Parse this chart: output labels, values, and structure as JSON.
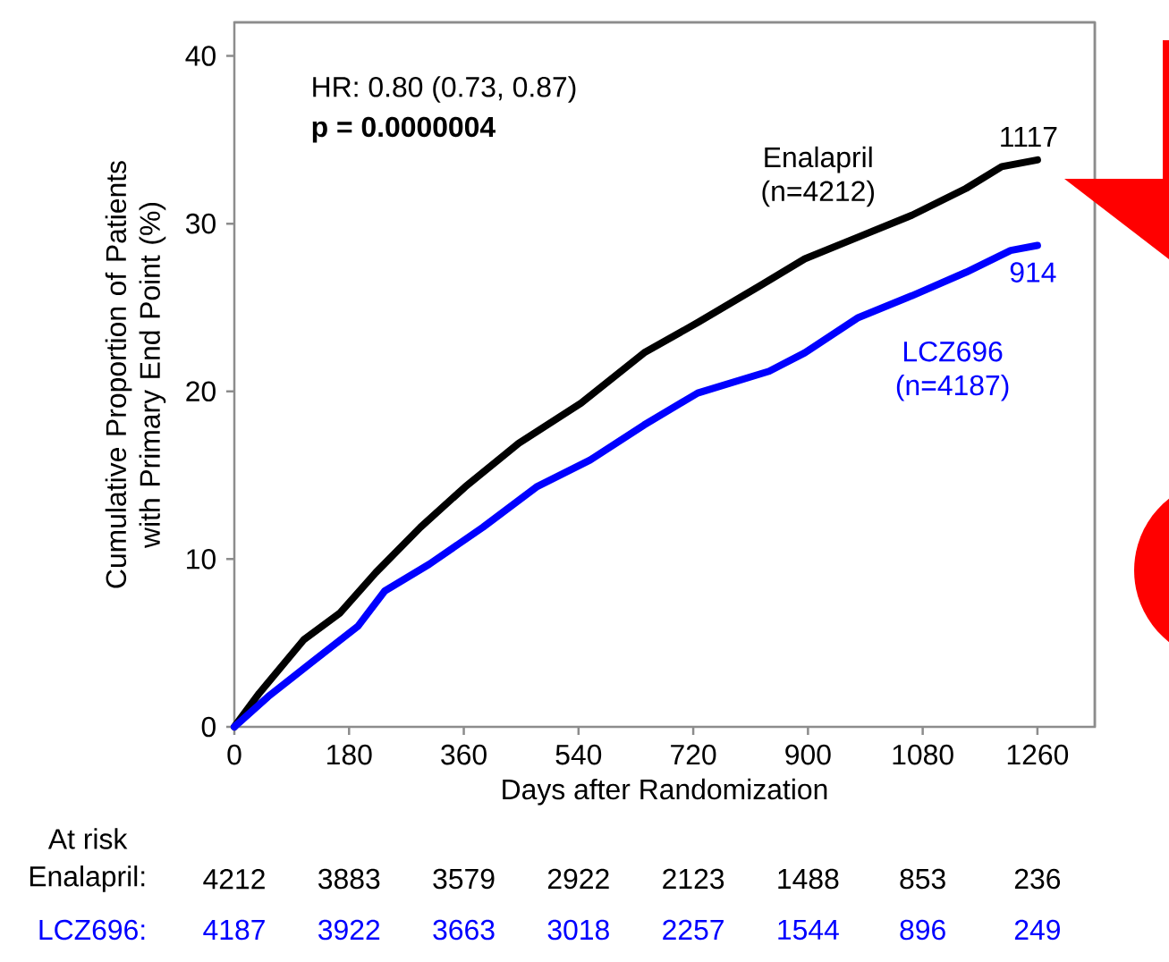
{
  "chart_data": {
    "type": "line",
    "xlabel": "Days after Randomization",
    "ylabel": "Cumulative Proportion of Patients with Primary End Point (%)",
    "xlim": [
      0,
      1350
    ],
    "ylim": [
      0,
      42
    ],
    "xticks": [
      0,
      180,
      360,
      540,
      720,
      900,
      1080,
      1260
    ],
    "yticks": [
      0,
      10,
      20,
      30,
      40
    ],
    "marker": "none",
    "line_style": "solid",
    "series": [
      {
        "name": "Enalapril (n=4212)",
        "color": "#000000",
        "x": [
          0,
          39,
          109,
          166,
          222,
          292,
          362,
          446,
          544,
          643,
          727,
          825,
          895,
          979,
          1063,
          1148,
          1204,
          1260
        ],
        "values": [
          0,
          2.0,
          5.2,
          6.8,
          9.2,
          11.9,
          14.3,
          16.9,
          19.3,
          22.3,
          24.1,
          26.3,
          27.9,
          29.2,
          30.5,
          32.1,
          33.4,
          33.8
        ]
      },
      {
        "name": "LCZ696 (n=4187)",
        "color": "#0000ff",
        "x": [
          0,
          53,
          123,
          194,
          236,
          306,
          390,
          474,
          558,
          643,
          727,
          839,
          895,
          979,
          1063,
          1148,
          1218,
          1260
        ],
        "values": [
          0,
          1.8,
          3.9,
          6.0,
          8.1,
          9.7,
          11.9,
          14.3,
          15.9,
          18.0,
          19.9,
          21.2,
          22.3,
          24.4,
          25.7,
          27.1,
          28.4,
          28.7
        ]
      }
    ],
    "annotations": [
      "HR: 0.80 (0.73, 0.87)",
      "p = 0.0000004",
      {
        "text": "1117",
        "x": 1260,
        "y": 33.8
      },
      {
        "text": "914",
        "x": 1260,
        "y": 28.7
      },
      "At risk",
      "Enalapril:",
      "4212",
      "3883",
      "3579",
      "2922",
      "2123",
      "1488",
      "853",
      "236",
      "LCZ696:",
      "4187",
      "3922",
      "3663",
      "3018",
      "2257",
      "1544",
      "896",
      "249"
    ]
  }
}
